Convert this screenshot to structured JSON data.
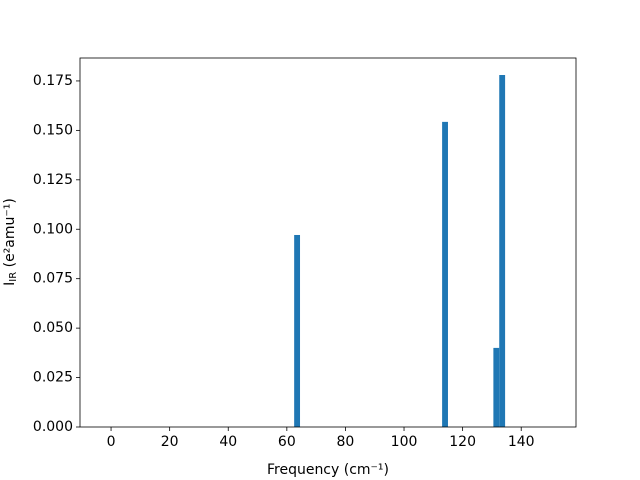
{
  "chart_data": {
    "type": "bar",
    "x": [
      63.5,
      114,
      131.5,
      133.5
    ],
    "values": [
      0.0971,
      0.1543,
      0.04,
      0.178
    ],
    "bar_width": 2,
    "color": "#1f77b4",
    "xlabel": "Frequency (cm⁻¹)",
    "ylabel": {
      "main": "I",
      "sub": "IR",
      "rest": " (e²amu⁻¹)"
    },
    "xlim": [
      -10.6,
      158.7
    ],
    "ylim": [
      0,
      0.1866
    ],
    "xticks": [
      0,
      20,
      40,
      60,
      80,
      100,
      120,
      140
    ],
    "yticks": [
      {
        "value": 0,
        "label": "0.000"
      },
      {
        "value": 0.025,
        "label": "0.025"
      },
      {
        "value": 0.05,
        "label": "0.050"
      },
      {
        "value": 0.075,
        "label": "0.075"
      },
      {
        "value": 0.1,
        "label": "0.100"
      },
      {
        "value": 0.125,
        "label": "0.125"
      },
      {
        "value": 0.15,
        "label": "0.150"
      },
      {
        "value": 0.175,
        "label": "0.175"
      }
    ]
  }
}
